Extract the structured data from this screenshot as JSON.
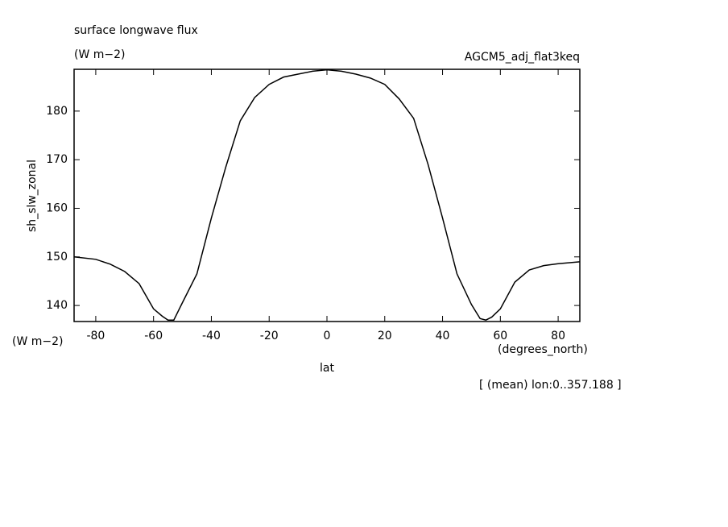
{
  "chart_data": {
    "type": "line",
    "title": "surface longwave flux",
    "subtitle": "(W m−2)",
    "dataset": "AGCM5_adj_flat3keq",
    "ylabel": "sh_slw_zonal",
    "y_units": "(W m−2)",
    "x_units": "(degrees_north)",
    "xlabel": "lat",
    "annotation": "[ (mean) lon:0..357.188 ]",
    "x": [
      -87.5,
      -80,
      -75,
      -70,
      -65,
      -60,
      -57,
      -55,
      -53,
      -50,
      -45,
      -40,
      -35,
      -30,
      -25,
      -20,
      -15,
      -10,
      -5,
      0,
      5,
      10,
      15,
      20,
      25,
      30,
      35,
      40,
      45,
      50,
      53,
      55,
      57,
      60,
      65,
      70,
      75,
      80,
      87.5
    ],
    "series": [
      {
        "color": "#000000",
        "values": [
          150,
          149.5,
          148.5,
          147,
          144.5,
          139.3,
          137.8,
          137,
          137,
          140.6,
          146.5,
          158,
          168.5,
          178,
          182.8,
          185.5,
          187,
          187.6,
          188.2,
          188.5,
          188.2,
          187.6,
          186.8,
          185.5,
          182.5,
          178.5,
          169,
          158,
          146.5,
          140.2,
          137.3,
          137,
          137.6,
          139.3,
          144.8,
          147.3,
          148.2,
          148.6,
          149
        ]
      }
    ],
    "xlim": [
      -87.5,
      87.5
    ],
    "xticks": [
      -80,
      -60,
      -40,
      -20,
      0,
      20,
      40,
      60,
      80
    ],
    "ylim": [
      136.7,
      188.6
    ],
    "yticks": [
      140,
      150,
      160,
      170,
      180
    ],
    "grid": false
  }
}
